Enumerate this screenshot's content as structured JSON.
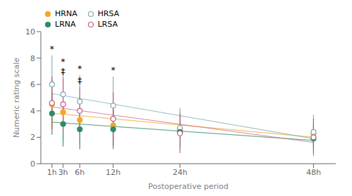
{
  "chart_data": {
    "type": "scatter",
    "x": [
      1,
      3,
      6,
      12,
      24,
      48
    ],
    "xlim": [
      -1,
      52
    ],
    "xticks": [
      {
        "value": 1,
        "label": "1h"
      },
      {
        "value": 3,
        "label": "3h"
      },
      {
        "value": 6,
        "label": "6h"
      },
      {
        "value": 12,
        "label": "12h"
      },
      {
        "value": 24,
        "label": "24h"
      },
      {
        "value": 48,
        "label": "48h"
      }
    ],
    "ylim": [
      0,
      10
    ],
    "yticks": [
      0,
      2,
      4,
      6,
      8,
      10
    ],
    "xlabel": "Postoperative period",
    "ylabel": "Numeric rating scale",
    "grid": false,
    "legend": "upper left",
    "series": [
      {
        "name": "HRNA",
        "color": "#F5A623",
        "marker": "circle",
        "values": [
          4.5,
          3.9,
          3.3,
          2.9,
          2.6,
          2.3
        ],
        "error": [
          1.9,
          2.2,
          1.8,
          1.6,
          1.3,
          1.1
        ],
        "trend": [
          3.8184,
          1.997
        ]
      },
      {
        "name": "HRSA",
        "color": "#7BAAB8",
        "marker": "open_circle",
        "values": [
          6.0,
          5.25,
          4.7,
          4.4,
          2.7,
          2.4
        ],
        "error": [
          2.2,
          2.0,
          2.0,
          2.2,
          1.5,
          1.3
        ],
        "trend": [
          5.3065,
          1.8943
        ]
      },
      {
        "name": "LRNA",
        "color": "#2E8B6A",
        "marker": "circle",
        "values": [
          3.8,
          3.0,
          2.6,
          2.6,
          2.4,
          1.9
        ],
        "error": [
          1.6,
          1.7,
          1.5,
          1.5,
          1.3,
          1.1
        ],
        "trend": [
          3.1479,
          1.766
        ]
      },
      {
        "name": "LRSA",
        "color": "#C06080",
        "marker": "open_circle",
        "values": [
          4.6,
          4.5,
          4.0,
          3.4,
          2.3,
          2.0
        ],
        "error": [
          2.0,
          2.0,
          1.8,
          2.0,
          1.5,
          1.4
        ],
        "trend": [
          4.3093,
          1.6091
        ]
      }
    ],
    "annotations": [
      {
        "series": "HRSA",
        "index": 0,
        "text": "*"
      },
      {
        "series": "HRSA",
        "index": 1,
        "text": "*"
      },
      {
        "series": "HRSA",
        "index": 2,
        "text": "*"
      },
      {
        "series": "HRSA",
        "index": 3,
        "text": "*"
      },
      {
        "series": "LRSA",
        "index": 1,
        "text": "‡"
      },
      {
        "series": "LRSA",
        "index": 2,
        "text": "‡"
      }
    ]
  }
}
